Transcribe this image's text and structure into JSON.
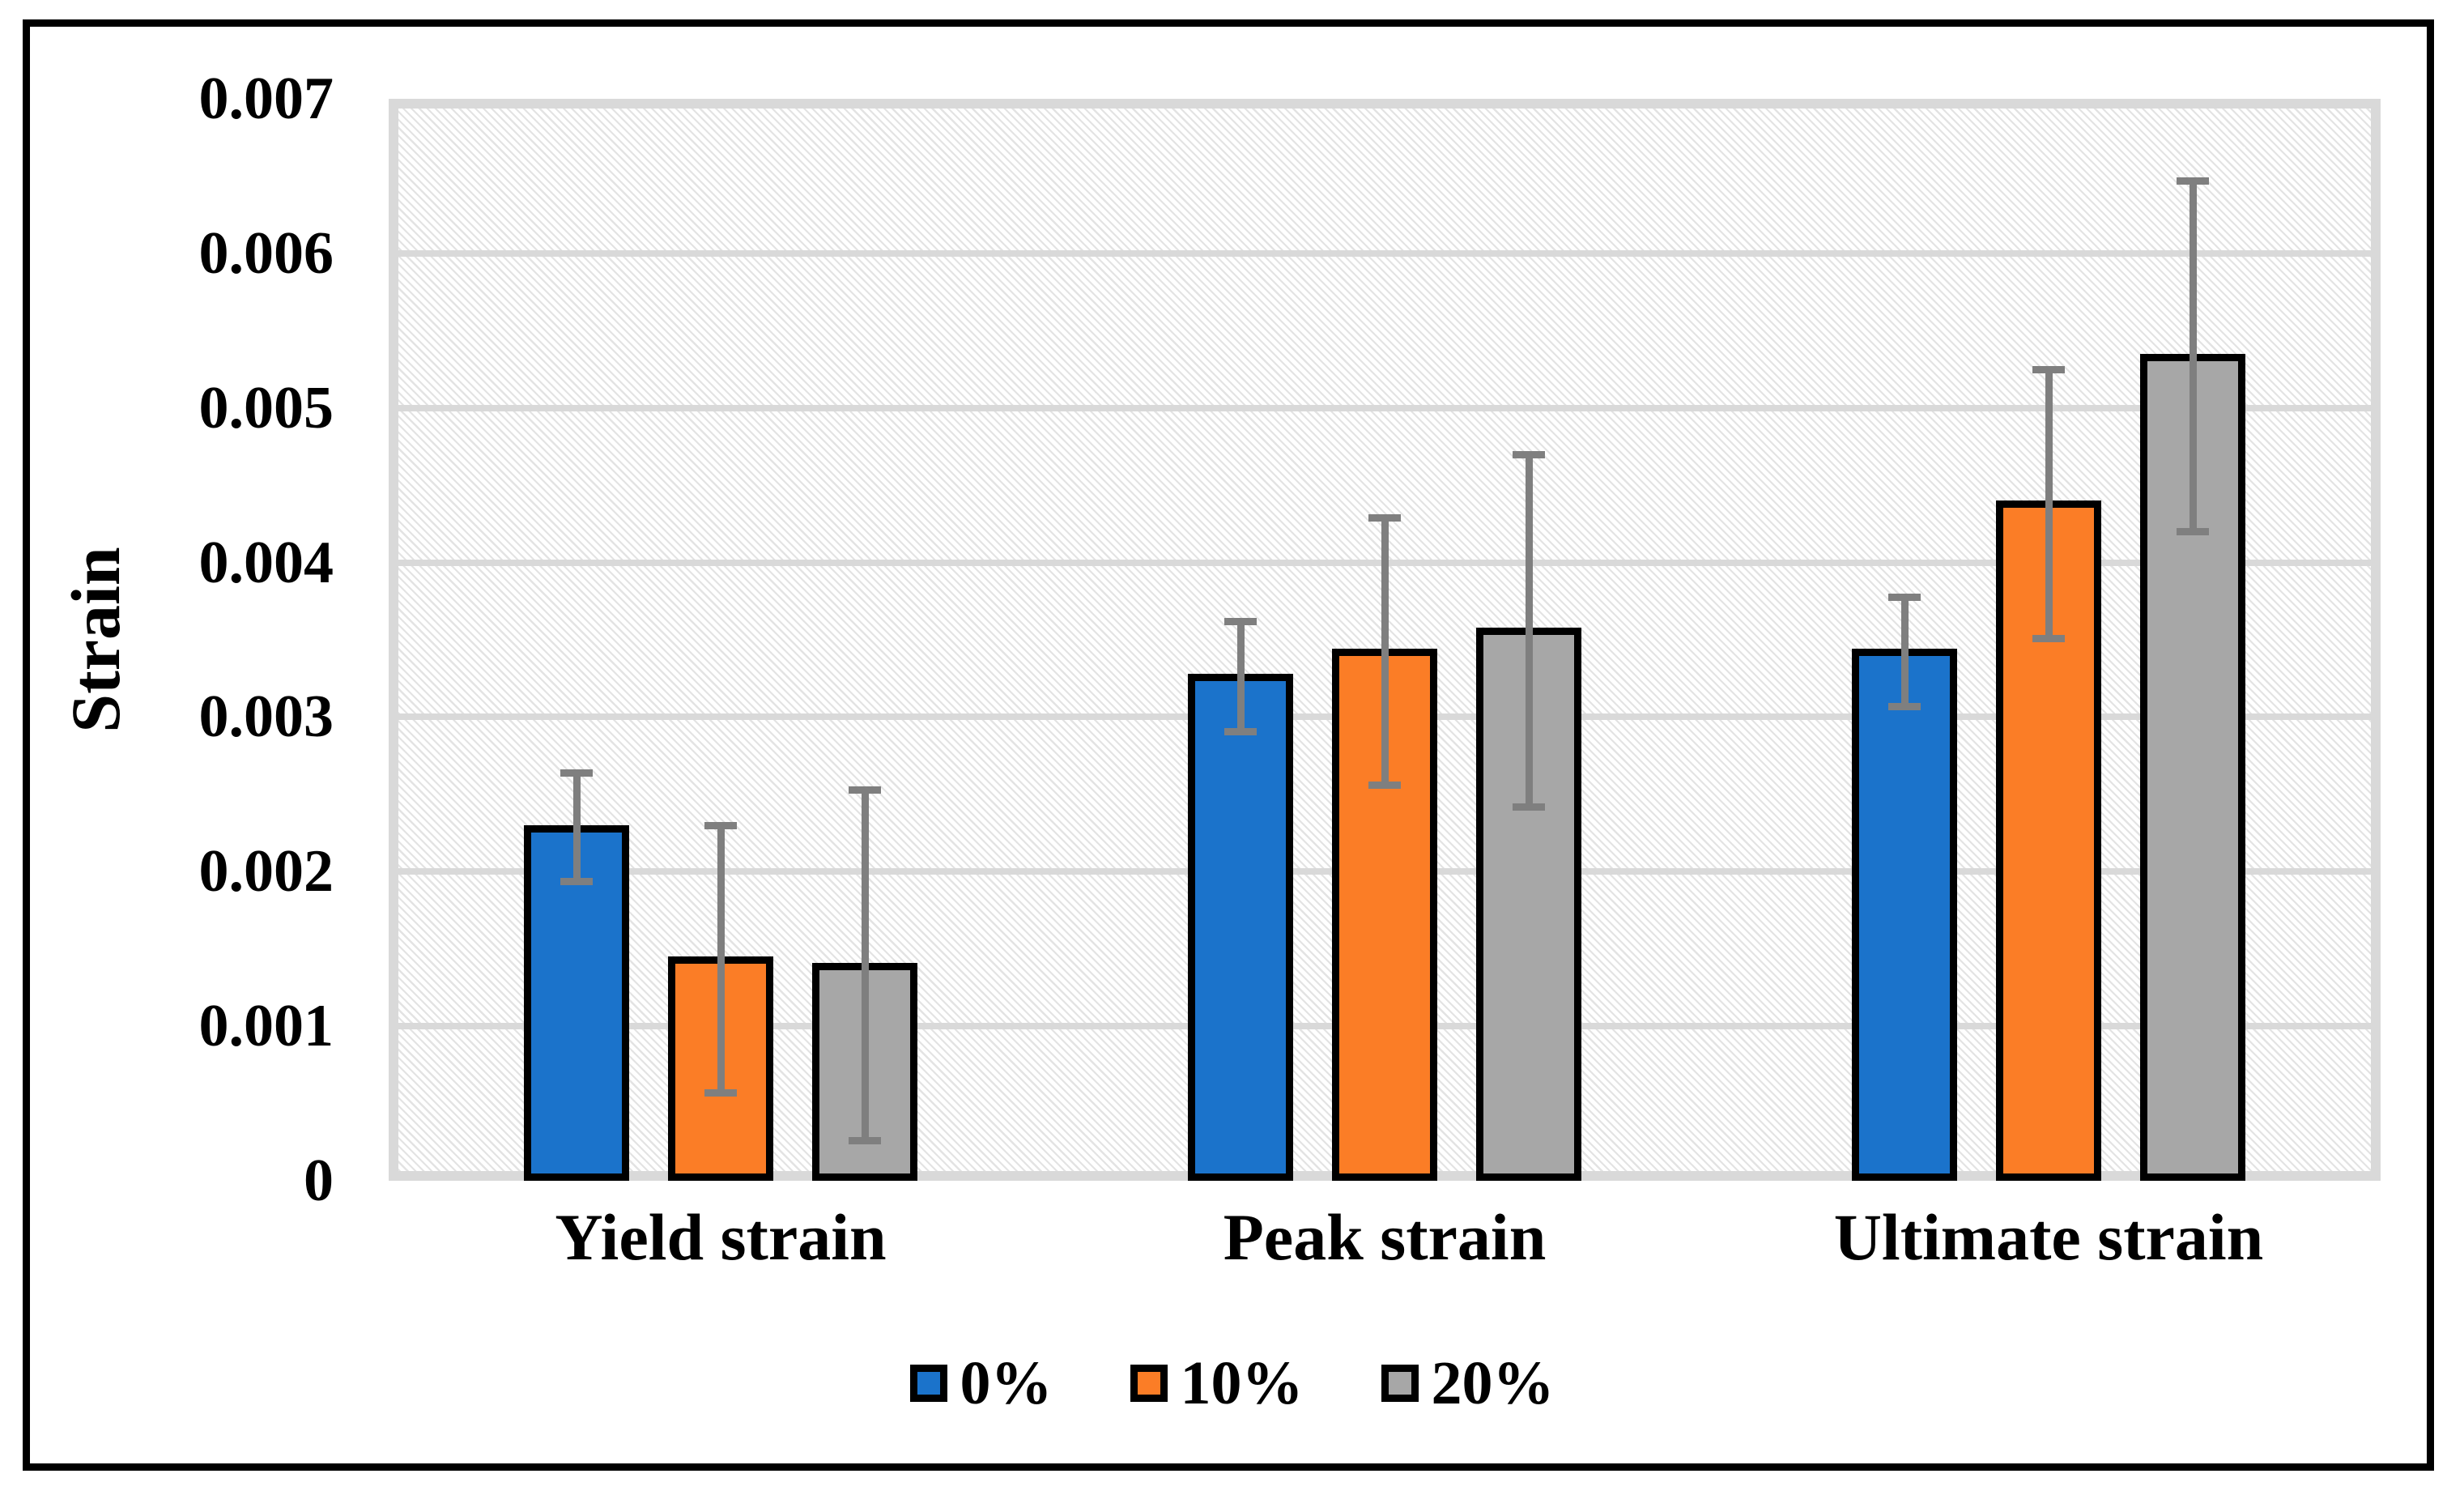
{
  "y_axis": {
    "title": "Strain",
    "ticks": [
      "0.007",
      "0.006",
      "0.005",
      "0.004",
      "0.003",
      "0.002",
      "0.001",
      "0"
    ]
  },
  "x_axis": {
    "categories": [
      "Yield strain",
      "Peak strain",
      "Ultimate strain"
    ]
  },
  "legend": {
    "items": [
      {
        "label": "0%",
        "color": "#1B73CB"
      },
      {
        "label": "10%",
        "color": "#FB7D26"
      },
      {
        "label": "20%",
        "color": "#A7A7A7"
      }
    ]
  },
  "chart_data": {
    "type": "bar",
    "title": "",
    "xlabel": "",
    "ylabel": "Strain",
    "ylim": [
      0,
      0.007
    ],
    "grid": "horizontal",
    "legend_position": "bottom-center",
    "categories": [
      "Yield strain",
      "Peak strain",
      "Ultimate strain"
    ],
    "series": [
      {
        "name": "0%",
        "color": "#1B73CB",
        "values": [
          0.00228,
          0.00326,
          0.00342
        ],
        "error_plus": [
          0.00036,
          0.00036,
          0.00036
        ],
        "error_minus": [
          0.00034,
          0.00035,
          0.00035
        ]
      },
      {
        "name": "10%",
        "color": "#FB7D26",
        "values": [
          0.00143,
          0.00342,
          0.00438
        ],
        "error_plus": [
          0.00087,
          0.00087,
          0.00087
        ],
        "error_minus": [
          0.00086,
          0.00086,
          0.00087
        ]
      },
      {
        "name": "20%",
        "color": "#A7A7A7",
        "values": [
          0.00139,
          0.00356,
          0.00533
        ],
        "error_plus": [
          0.00114,
          0.00114,
          0.00114
        ],
        "error_minus": [
          0.00113,
          0.00114,
          0.00113
        ]
      }
    ],
    "style": {
      "gridline_color": "#D9D9D9",
      "plot_border_color": "#D9D9D9",
      "hatch_color": "#E3E3E3",
      "bar_border_color": "#000000",
      "error_bar_color": "#7F7F7F",
      "figure_border_color": "#000000"
    }
  }
}
